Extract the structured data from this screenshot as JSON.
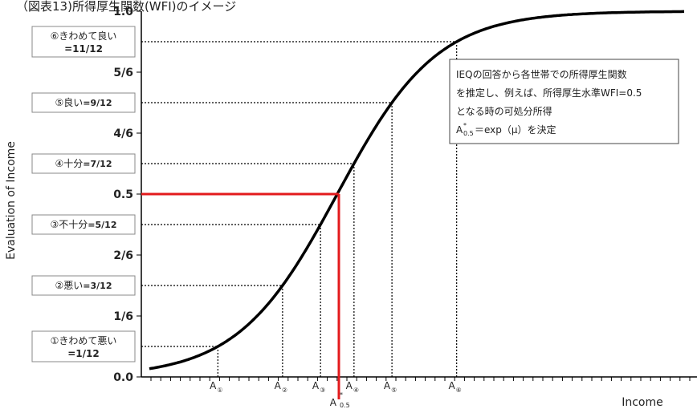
{
  "chart_data": {
    "type": "line",
    "title": "（図表13)所得厚生関数(WFI)のイメージ",
    "xlabel": "Income",
    "ylabel": "Evaluation of Income",
    "ylim": [
      0,
      1
    ],
    "y_ticks": [
      {
        "value": 0,
        "label": "0.0"
      },
      {
        "value": 0.16667,
        "label": "1/6"
      },
      {
        "value": 0.33333,
        "label": "2/6"
      },
      {
        "value": 0.5,
        "label": "0.5"
      },
      {
        "value": 0.66667,
        "label": "4/6"
      },
      {
        "value": 0.83333,
        "label": "5/6"
      },
      {
        "value": 1,
        "label": "1.0"
      }
    ],
    "categories": [
      {
        "value": 0.08333,
        "main": "①きわめて悪い",
        "sub": "=1/12"
      },
      {
        "value": 0.25,
        "main": "②悪い",
        "sub": "=3/12"
      },
      {
        "value": 0.41667,
        "main": "③不十分",
        "sub": "=5/12"
      },
      {
        "value": 0.58333,
        "main": "④十分",
        "sub": "=7/12"
      },
      {
        "value": 0.75,
        "main": "⑤良い",
        "sub": "=9/12"
      },
      {
        "value": 0.91667,
        "main": "⑥きわめて良い",
        "sub": "=11/12"
      }
    ],
    "x_markers": [
      {
        "main": "A",
        "sub": "①",
        "value": 0.08333
      },
      {
        "main": "A",
        "sub": "②",
        "value": 0.25
      },
      {
        "main": "A",
        "sub": "③",
        "value": 0.41667
      },
      {
        "main": "A",
        "sub": "④",
        "value": 0.58333
      },
      {
        "main": "A",
        "sub": "⑤",
        "value": 0.75
      },
      {
        "main": "A",
        "sub": "⑥",
        "value": 0.91667
      }
    ],
    "highlight": {
      "y": 0.5,
      "label_main": "A",
      "label_sup": "*",
      "label_sub": "0.5",
      "color": "#e31a1c"
    },
    "series": [
      {
        "curve": "logistic-cdf",
        "color": "#000000"
      }
    ],
    "annotation": {
      "lines": [
        "IEQの回答から各世帯での所得厚生関数",
        "を推定し、例えば、所得厚生水準WFI=0.5",
        "となる時の可処分所得"
      ],
      "formula_main": "A",
      "formula_sup": "*",
      "formula_sub": "0.5",
      "formula_rest": "＝exp（μ）を決定"
    },
    "grid": false
  }
}
